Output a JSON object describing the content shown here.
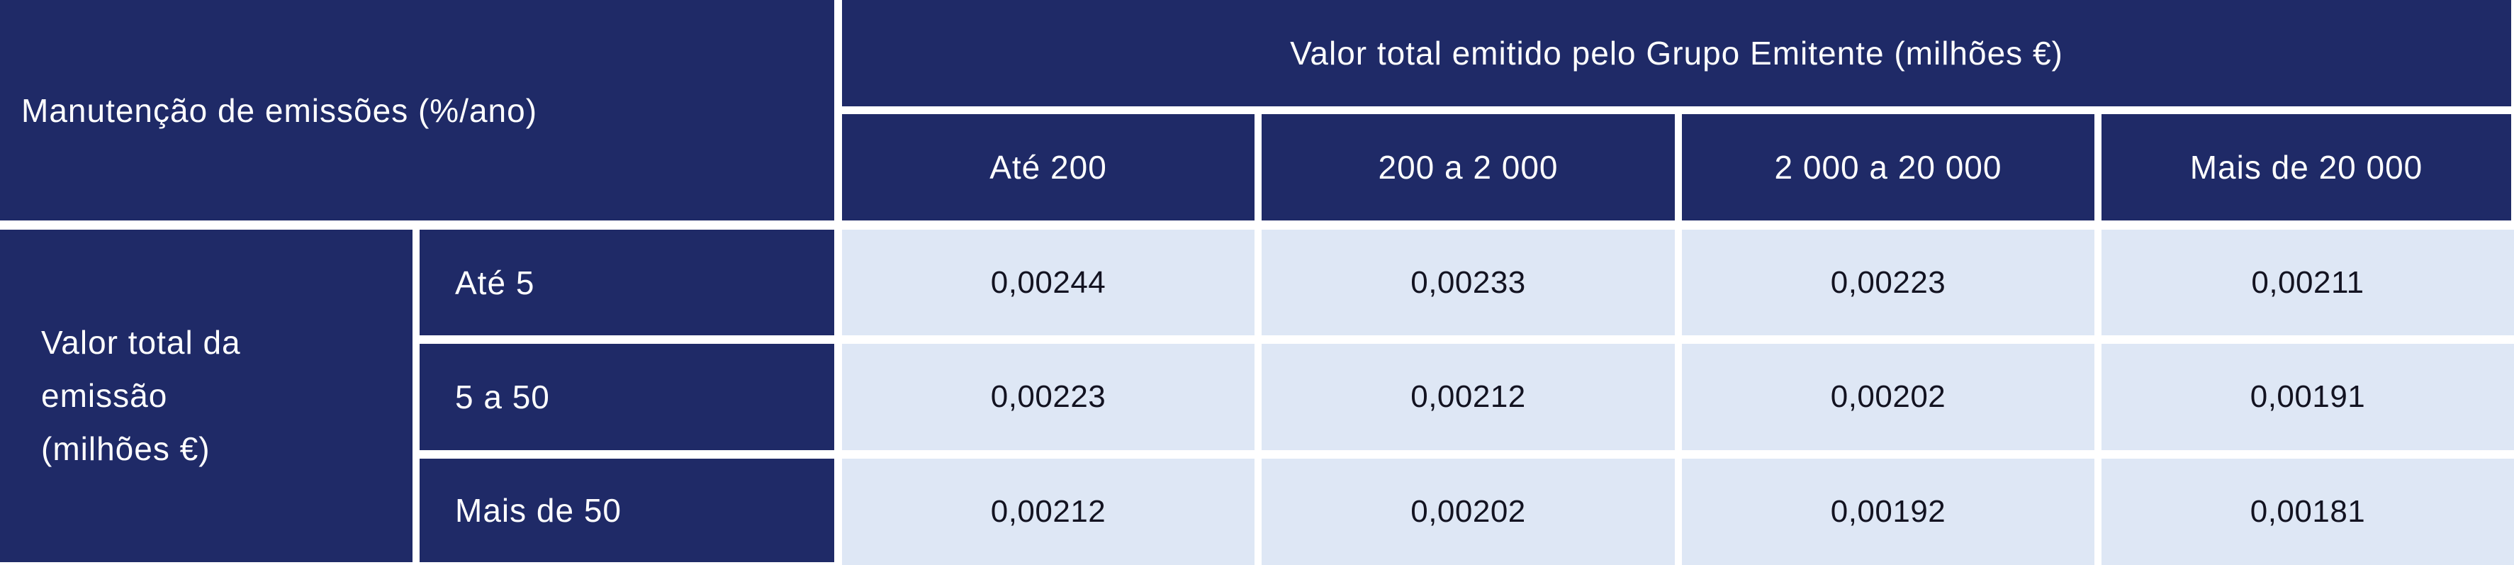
{
  "colors": {
    "navy": "#1F2A67",
    "light_blue": "#DEE7F5",
    "grid_gap_white": "#FFFFFF",
    "data_text": "#131321",
    "header_text": "#FFFFFF"
  },
  "table": {
    "corner_header": "Manutenção de emissões (%/ano)",
    "column_group_header": "Valor total emitido pelo Grupo Emitente (milhões €)",
    "column_headers": [
      "Até 200",
      "200 a 2 000",
      "2 000 a 20 000",
      "Mais de 20 000"
    ],
    "row_group_header_lines": [
      "Valor total da",
      "emissão",
      "(milhões €)"
    ],
    "row_headers": [
      "Até 5",
      "5 a 50",
      "Mais de 50"
    ],
    "rows": [
      [
        "0,00244",
        "0,00233",
        "0,00223",
        "0,00211"
      ],
      [
        "0,00223",
        "0,00212",
        "0,00202",
        "0,00191"
      ],
      [
        "0,00212",
        "0,00202",
        "0,00192",
        "0,00181"
      ]
    ]
  },
  "chart_data": {
    "type": "table",
    "title": "",
    "value_dimension": "Manutenção de emissões (%/ano)",
    "column_dimension": "Valor total emitido pelo Grupo Emitente (milhões €)",
    "row_dimension": "Valor total da emissão (milhões €)",
    "columns": [
      "Até 200",
      "200 a 2 000",
      "2 000 a 20 000",
      "Mais de 20 000"
    ],
    "rows": [
      "Até 5",
      "5 a 50",
      "Mais de 50"
    ],
    "values": [
      [
        0.00244,
        0.00233,
        0.00223,
        0.00211
      ],
      [
        0.00223,
        0.00212,
        0.00202,
        0.00191
      ],
      [
        0.00212,
        0.00202,
        0.00192,
        0.00181
      ]
    ]
  }
}
